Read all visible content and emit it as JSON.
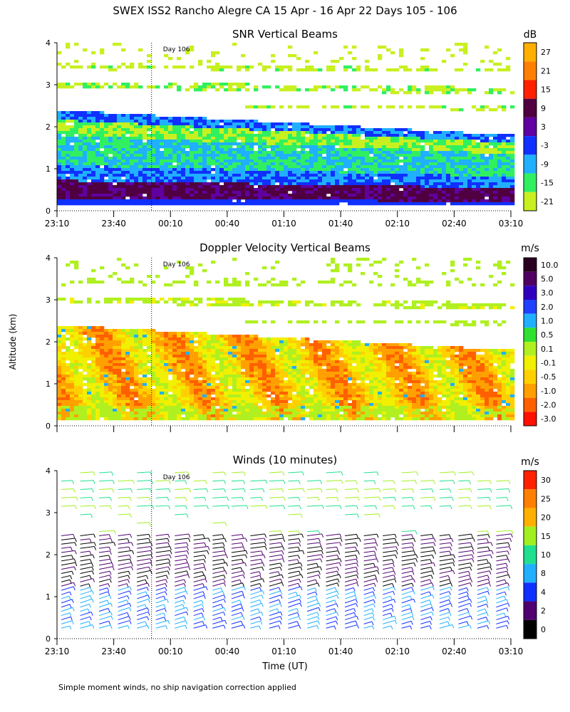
{
  "figure": {
    "title": "SWEX ISS2 Rancho Alegre CA  15 Apr - 16 Apr 22 Days 105 - 106",
    "ylabel": "Altitude (km)",
    "xlabel": "Time (UT)",
    "footnote": "Simple moment winds, no ship navigation correction applied"
  },
  "chart_data": [
    {
      "type": "heatmap",
      "title": "SNR Vertical Beams",
      "xlabel": "Time (UT)",
      "ylabel": "Altitude (km)",
      "ylim": [
        0,
        4
      ],
      "yticks": [
        0,
        1,
        2,
        3,
        4
      ],
      "xticks": [
        "23:10",
        "23:40",
        "00:10",
        "00:40",
        "01:10",
        "01:40",
        "02:10",
        "02:40",
        "03:10"
      ],
      "xlim_minutes": [
        0,
        240
      ],
      "annotation": "Day 106",
      "day_marker_minutes": 50,
      "colorbar": {
        "unit": "dB",
        "labels": [
          "27",
          "21",
          "15",
          "9",
          "3",
          "-3",
          "-9",
          "-15",
          "-21"
        ],
        "colors": [
          "#ffb000",
          "#ff8000",
          "#ff2000",
          "#500040",
          "#6000a0",
          "#1030ff",
          "#20b0ff",
          "#30f060",
          "#c8f020"
        ]
      }
    },
    {
      "type": "heatmap",
      "title": "Doppler Velocity Vertical Beams",
      "xlabel": "Time (UT)",
      "ylabel": "Altitude (km)",
      "ylim": [
        0,
        4
      ],
      "yticks": [
        0,
        1,
        2,
        3,
        4
      ],
      "xlim_minutes": [
        0,
        240
      ],
      "annotation": "Day 106",
      "day_marker_minutes": 50,
      "colorbar": {
        "unit": "m/s",
        "labels": [
          "10.0",
          "5.0",
          "3.0",
          "2.0",
          "1.0",
          "0.5",
          "0.1",
          "-0.1",
          "-0.5",
          "-1.0",
          "-2.0",
          "-3.0"
        ],
        "colors": [
          "#280020",
          "#500060",
          "#3000c0",
          "#2040ff",
          "#20b0ff",
          "#30e030",
          "#b0f020",
          "#f0f000",
          "#ffd000",
          "#ffa000",
          "#ff6000",
          "#ff1000"
        ]
      }
    },
    {
      "type": "scatter",
      "title": "Winds (10 minutes)",
      "xlabel": "Time (UT)",
      "ylabel": "Altitude (km)",
      "ylim": [
        0,
        4
      ],
      "yticks": [
        0,
        1,
        2,
        3,
        4
      ],
      "xticks": [
        "23:10",
        "23:40",
        "00:10",
        "00:40",
        "01:10",
        "01:40",
        "02:10",
        "02:40",
        "03:10"
      ],
      "xlim_minutes": [
        0,
        240
      ],
      "annotation": "Day 106",
      "day_marker_minutes": 50,
      "colorbar": {
        "unit": "m/s",
        "labels": [
          "30",
          "25",
          "20",
          "15",
          "10",
          "8",
          "4",
          "2",
          "0"
        ],
        "colors": [
          "#ff2000",
          "#ff8000",
          "#ffb000",
          "#a0f020",
          "#20e090",
          "#20b0ff",
          "#1030ff",
          "#500070",
          "#000000"
        ]
      }
    }
  ]
}
